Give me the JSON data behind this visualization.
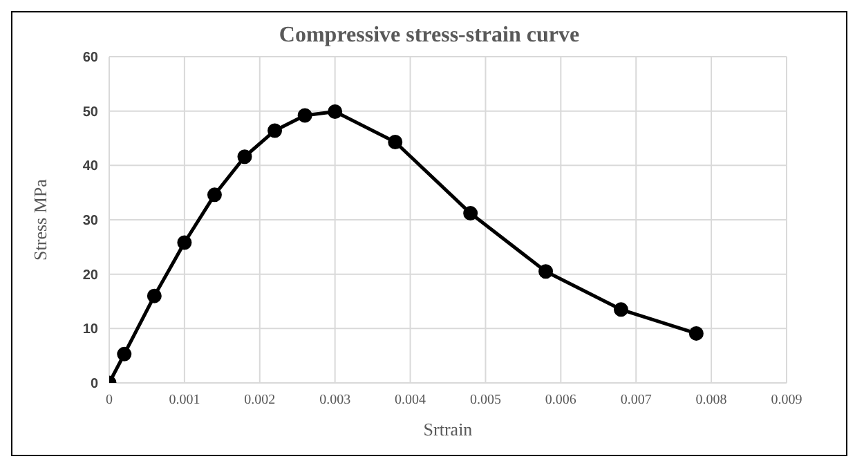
{
  "chart_data": {
    "type": "line",
    "title": "Compressive stress-strain curve",
    "xlabel": "Srtrain",
    "ylabel": "Stress MPa",
    "x": [
      0,
      0.0002,
      0.0006,
      0.001,
      0.0014,
      0.0018,
      0.0022,
      0.0026,
      0.003,
      0.0038,
      0.0048,
      0.0058,
      0.0068,
      0.0078
    ],
    "series": [
      {
        "color": "#000000",
        "values": [
          0,
          5.3,
          16,
          25.8,
          34.6,
          41.6,
          46.4,
          49.2,
          49.9,
          44.3,
          31.2,
          20.5,
          13.5,
          9.1
        ]
      }
    ],
    "xlim": [
      0,
      0.009
    ],
    "xticks": [
      0,
      0.001,
      0.002,
      0.003,
      0.004,
      0.005,
      0.006,
      0.007,
      0.008,
      0.009
    ],
    "ylim": [
      0,
      60
    ],
    "yticks": [
      0,
      10,
      20,
      30,
      40,
      50,
      60
    ],
    "grid": true,
    "marker": "circle",
    "line_style": "solid"
  }
}
